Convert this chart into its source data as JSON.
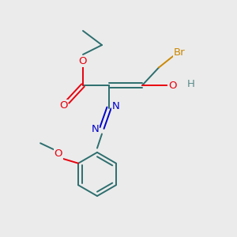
{
  "bg_color": "#ebebeb",
  "bond_color": "#2d6e6e",
  "O_color": "#e8000d",
  "N_color": "#0000cc",
  "Br_color": "#cc8800",
  "H_color": "#5a8a8a",
  "figsize": [
    3.0,
    3.0
  ],
  "dpi": 100,
  "lw": 1.4,
  "fs": 9.5,
  "xlim": [
    0,
    10
  ],
  "ylim": [
    0,
    10
  ]
}
